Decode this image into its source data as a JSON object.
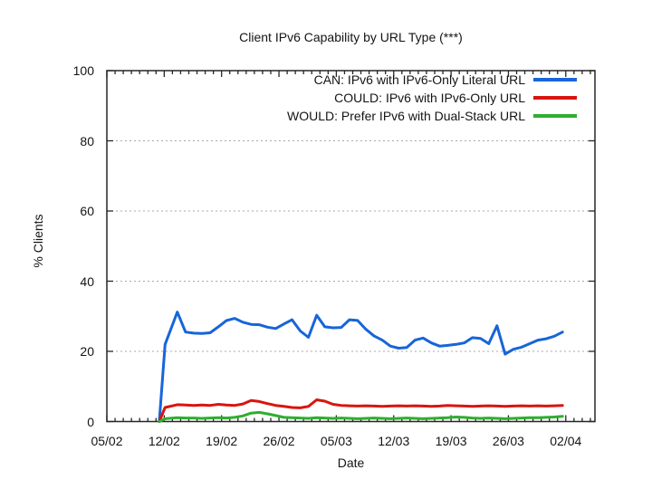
{
  "colors": {
    "background": "#ffffff",
    "axis": "#262626",
    "grid_dotted": "#a8a8a8",
    "text": "#141414",
    "series_blue": "#1765d8",
    "series_red": "#d91410",
    "series_green": "#2fae2f"
  },
  "chart_data": {
    "type": "line",
    "title": "Client IPv6 Capability by URL Type (***)",
    "xlabel": "Date",
    "ylabel": "% Clients",
    "ylim": [
      0,
      100
    ],
    "grid": "horizontal dotted gridlines at 20/40/60/80, none vertical",
    "legend_position": "top-right inside plot, right-aligned text with line sample",
    "x_axis": {
      "unit": "days since 05/02",
      "major_tick_interval_days": 7,
      "minor_tick_interval_days": 1,
      "range_days": [
        0,
        59.6
      ]
    },
    "x_tick_labels": [
      "05/02",
      "12/02",
      "19/02",
      "26/02",
      "05/03",
      "12/03",
      "19/03",
      "26/03",
      "02/04"
    ],
    "y_ticks": [
      0,
      20,
      40,
      60,
      80,
      100
    ],
    "series": [
      {
        "name": "CAN: IPv6 with IPv6-Only Literal URL",
        "color": "#1765d8",
        "points": [
          [
            6.4,
            0
          ],
          [
            7.1,
            22
          ],
          [
            8.6,
            31.2
          ],
          [
            9.6,
            25.5
          ],
          [
            10.6,
            25.2
          ],
          [
            11.6,
            25.1
          ],
          [
            12.6,
            25.3
          ],
          [
            13.6,
            27.0
          ],
          [
            14.6,
            28.8
          ],
          [
            15.6,
            29.4
          ],
          [
            16.6,
            28.3
          ],
          [
            17.6,
            27.7
          ],
          [
            18.6,
            27.6
          ],
          [
            19.6,
            26.9
          ],
          [
            20.6,
            26.5
          ],
          [
            21.6,
            27.8
          ],
          [
            22.6,
            29.0
          ],
          [
            23.6,
            25.8
          ],
          [
            24.6,
            24.0
          ],
          [
            25.6,
            30.3
          ],
          [
            26.6,
            27.0
          ],
          [
            27.6,
            26.7
          ],
          [
            28.6,
            26.8
          ],
          [
            29.6,
            29.0
          ],
          [
            30.6,
            28.8
          ],
          [
            31.6,
            26.3
          ],
          [
            32.6,
            24.4
          ],
          [
            33.6,
            23.2
          ],
          [
            34.6,
            21.5
          ],
          [
            35.6,
            20.9
          ],
          [
            36.6,
            21.1
          ],
          [
            37.6,
            23.2
          ],
          [
            38.6,
            23.8
          ],
          [
            39.6,
            22.4
          ],
          [
            40.6,
            21.5
          ],
          [
            41.6,
            21.7
          ],
          [
            42.6,
            22.0
          ],
          [
            43.6,
            22.4
          ],
          [
            44.6,
            23.9
          ],
          [
            45.6,
            23.7
          ],
          [
            46.6,
            22.2
          ],
          [
            47.6,
            27.3
          ],
          [
            48.6,
            19.2
          ],
          [
            49.6,
            20.6
          ],
          [
            50.6,
            21.2
          ],
          [
            51.6,
            22.2
          ],
          [
            52.6,
            23.2
          ],
          [
            53.6,
            23.6
          ],
          [
            54.6,
            24.3
          ],
          [
            55.6,
            25.5
          ]
        ]
      },
      {
        "name": "COULD: IPv6 with IPv6-Only URL",
        "color": "#d91410",
        "points": [
          [
            6.4,
            0
          ],
          [
            7.1,
            4.0
          ],
          [
            8.6,
            4.8
          ],
          [
            9.6,
            4.7
          ],
          [
            10.6,
            4.6
          ],
          [
            11.6,
            4.7
          ],
          [
            12.6,
            4.6
          ],
          [
            13.6,
            4.9
          ],
          [
            14.6,
            4.7
          ],
          [
            15.6,
            4.6
          ],
          [
            16.6,
            5.0
          ],
          [
            17.6,
            6.0
          ],
          [
            18.6,
            5.7
          ],
          [
            19.6,
            5.1
          ],
          [
            20.6,
            4.6
          ],
          [
            21.6,
            4.3
          ],
          [
            22.6,
            4.0
          ],
          [
            23.6,
            3.9
          ],
          [
            24.6,
            4.3
          ],
          [
            25.6,
            6.2
          ],
          [
            26.6,
            5.8
          ],
          [
            27.6,
            4.9
          ],
          [
            28.6,
            4.6
          ],
          [
            29.6,
            4.5
          ],
          [
            30.6,
            4.4
          ],
          [
            31.6,
            4.5
          ],
          [
            32.6,
            4.4
          ],
          [
            33.6,
            4.3
          ],
          [
            34.6,
            4.4
          ],
          [
            35.6,
            4.5
          ],
          [
            36.6,
            4.4
          ],
          [
            37.6,
            4.5
          ],
          [
            38.6,
            4.4
          ],
          [
            39.6,
            4.3
          ],
          [
            40.6,
            4.4
          ],
          [
            41.6,
            4.6
          ],
          [
            42.6,
            4.5
          ],
          [
            43.6,
            4.4
          ],
          [
            44.6,
            4.3
          ],
          [
            45.6,
            4.4
          ],
          [
            46.6,
            4.5
          ],
          [
            47.6,
            4.4
          ],
          [
            48.6,
            4.3
          ],
          [
            49.6,
            4.4
          ],
          [
            50.6,
            4.5
          ],
          [
            51.6,
            4.4
          ],
          [
            52.6,
            4.5
          ],
          [
            53.6,
            4.4
          ],
          [
            54.6,
            4.5
          ],
          [
            55.6,
            4.6
          ]
        ]
      },
      {
        "name": "WOULD: Prefer IPv6 with Dual-Stack URL",
        "color": "#2fae2f",
        "points": [
          [
            6.4,
            0
          ],
          [
            7.1,
            0.8
          ],
          [
            8.6,
            1.1
          ],
          [
            9.6,
            1.0
          ],
          [
            10.6,
            1.0
          ],
          [
            11.6,
            0.9
          ],
          [
            12.6,
            1.0
          ],
          [
            13.6,
            1.1
          ],
          [
            14.6,
            1.0
          ],
          [
            15.6,
            1.2
          ],
          [
            16.6,
            1.6
          ],
          [
            17.6,
            2.4
          ],
          [
            18.6,
            2.6
          ],
          [
            19.6,
            2.2
          ],
          [
            20.6,
            1.7
          ],
          [
            21.6,
            1.2
          ],
          [
            22.6,
            1.1
          ],
          [
            23.6,
            1.0
          ],
          [
            24.6,
            0.9
          ],
          [
            25.6,
            1.1
          ],
          [
            26.6,
            1.0
          ],
          [
            27.6,
            0.9
          ],
          [
            28.6,
            1.0
          ],
          [
            29.6,
            0.9
          ],
          [
            30.6,
            0.8
          ],
          [
            31.6,
            0.9
          ],
          [
            32.6,
            1.0
          ],
          [
            33.6,
            0.9
          ],
          [
            34.6,
            0.8
          ],
          [
            35.6,
            0.9
          ],
          [
            36.6,
            1.0
          ],
          [
            37.6,
            0.9
          ],
          [
            38.6,
            0.8
          ],
          [
            39.6,
            0.9
          ],
          [
            40.6,
            1.0
          ],
          [
            41.6,
            1.1
          ],
          [
            42.6,
            1.3
          ],
          [
            43.6,
            1.2
          ],
          [
            44.6,
            1.0
          ],
          [
            45.6,
            0.9
          ],
          [
            46.6,
            1.0
          ],
          [
            47.6,
            0.9
          ],
          [
            48.6,
            0.8
          ],
          [
            49.6,
            0.9
          ],
          [
            50.6,
            1.0
          ],
          [
            51.6,
            1.1
          ],
          [
            52.6,
            1.1
          ],
          [
            53.6,
            1.2
          ],
          [
            54.6,
            1.3
          ],
          [
            55.6,
            1.5
          ]
        ]
      }
    ]
  }
}
